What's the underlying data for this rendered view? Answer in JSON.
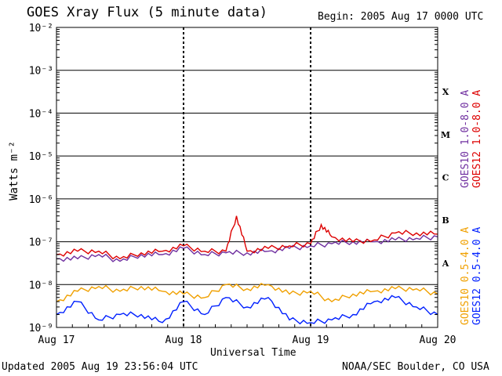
{
  "header": {
    "title": "GOES Xray Flux (5 minute data)",
    "begin": "Begin:  2005 Aug 17 0000 UTC"
  },
  "footer": {
    "updated": "Updated 2005 Aug 19 23:56:04 UTC",
    "source": "NOAA/SEC Boulder, CO USA"
  },
  "chart_data": {
    "type": "line",
    "xlabel": "Universal Time",
    "ylabel": "Watts m⁻²",
    "x_ticks": [
      "Aug 17",
      "Aug 18",
      "Aug 19",
      "Aug 20"
    ],
    "x_range_hours": [
      0,
      72
    ],
    "y_scale": "log",
    "ylim": [
      1e-09,
      0.01
    ],
    "y_tick_labels": [
      "10⁻⁹",
      "10⁻⁸",
      "10⁻⁷",
      "10⁻⁶",
      "10⁻⁵",
      "10⁻⁴",
      "10⁻³",
      "10⁻²"
    ],
    "flare_classes": [
      "A",
      "B",
      "C",
      "M",
      "X"
    ],
    "grid": true,
    "legend_placement": "right",
    "series": [
      {
        "name": "GOES10 1.0-8.0 A",
        "color": "#7030a0",
        "x": [
          0,
          4,
          8,
          12,
          16,
          20,
          24,
          28,
          32,
          36,
          40,
          44,
          48,
          52,
          56,
          60,
          64,
          68,
          72
        ],
        "y": [
          4e-08,
          4e-08,
          5e-08,
          3.5e-08,
          5e-08,
          5e-08,
          7e-08,
          5e-08,
          5.5e-08,
          5.5e-08,
          6e-08,
          7e-08,
          8e-08,
          9e-08,
          1e-07,
          1e-07,
          1.1e-07,
          1.2e-07,
          1.3e-07
        ]
      },
      {
        "name": "GOES12 1.0-8.0 A",
        "color": "#dd0000",
        "x": [
          0,
          4,
          8,
          12,
          16,
          20,
          24,
          28,
          32,
          34,
          36,
          40,
          44,
          48,
          50,
          52,
          56,
          60,
          64,
          68,
          72
        ],
        "y": [
          5e-08,
          6e-08,
          6e-08,
          4e-08,
          5.5e-08,
          6e-08,
          8e-08,
          6e-08,
          6e-08,
          4e-07,
          6e-08,
          7e-08,
          8e-08,
          9e-08,
          2.5e-07,
          1.3e-07,
          1e-07,
          1.1e-07,
          1.6e-07,
          1.6e-07,
          1.5e-07
        ]
      },
      {
        "name": "GOES10 0.5-4.0 A",
        "color": "#f0a000",
        "x": [
          0,
          4,
          8,
          12,
          16,
          20,
          24,
          28,
          32,
          36,
          40,
          44,
          48,
          52,
          56,
          60,
          64,
          68,
          72
        ],
        "y": [
          4e-09,
          7e-09,
          9e-09,
          7e-09,
          9e-09,
          7e-09,
          6e-09,
          5e-09,
          1e-08,
          8e-09,
          1e-08,
          6e-09,
          7e-09,
          4e-09,
          6e-09,
          7e-09,
          8e-09,
          8e-09,
          6e-09
        ]
      },
      {
        "name": "GOES12 0.5-4.0 A",
        "color": "#0020ff",
        "x": [
          0,
          4,
          8,
          12,
          16,
          20,
          24,
          28,
          32,
          36,
          40,
          44,
          48,
          52,
          56,
          60,
          64,
          68,
          72
        ],
        "y": [
          2e-09,
          4e-09,
          1.5e-09,
          2e-09,
          2e-09,
          1.3e-09,
          4e-09,
          2e-09,
          5e-09,
          3e-09,
          5e-09,
          1.5e-09,
          1.3e-09,
          1.5e-09,
          2e-09,
          4e-09,
          5e-09,
          3e-09,
          2e-09
        ]
      }
    ]
  }
}
